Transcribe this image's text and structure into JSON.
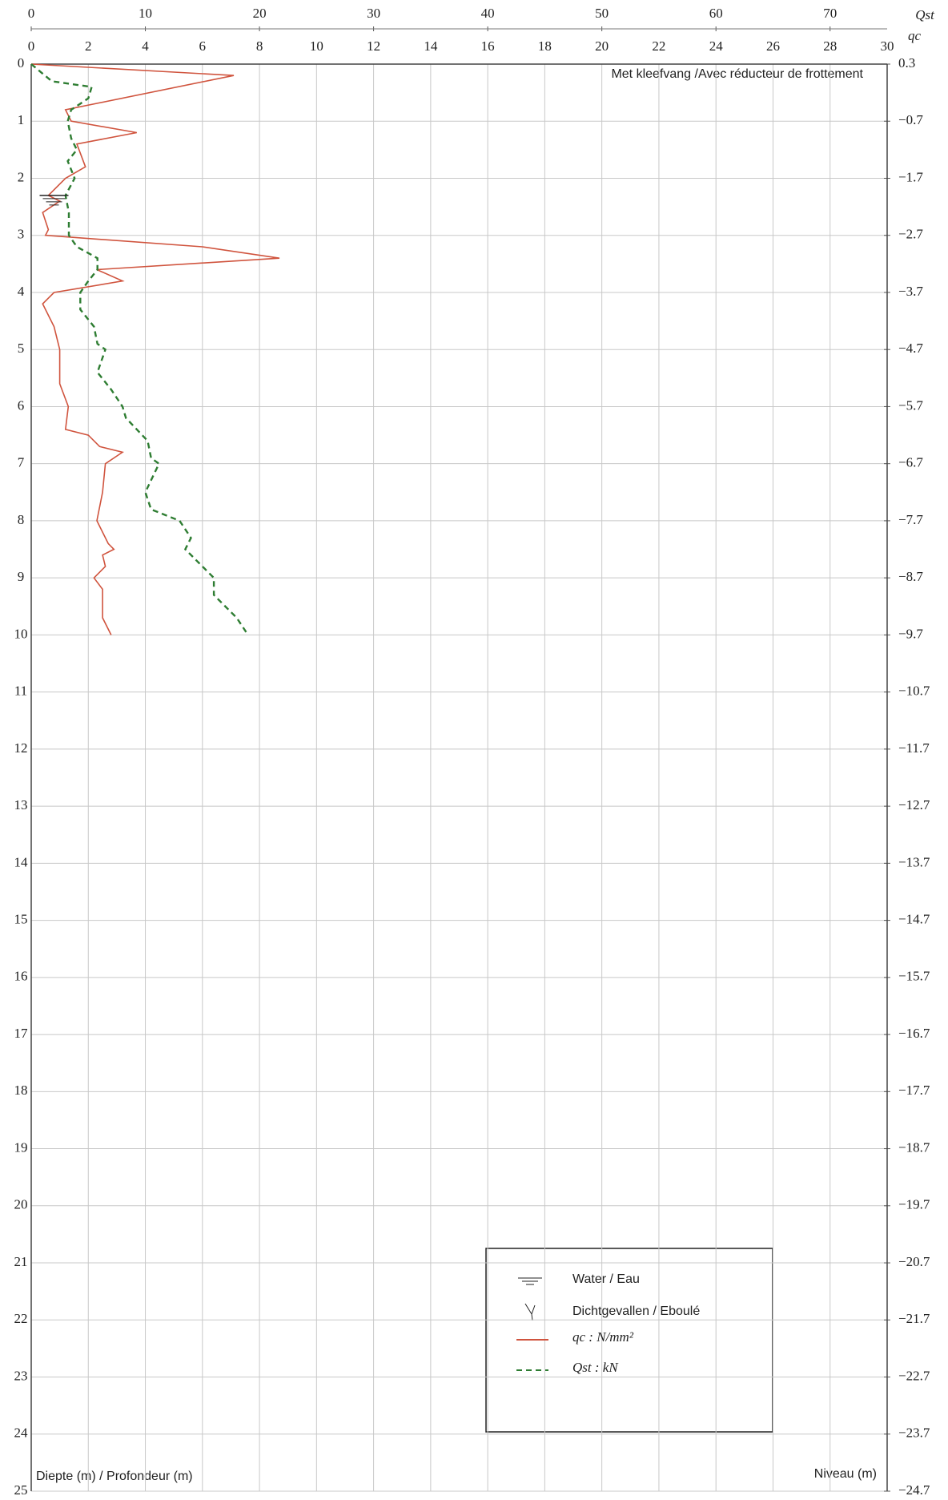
{
  "chart_data": {
    "type": "line",
    "title": "Met kleefvang /Avec réducteur de frottement",
    "y_label": "Diepte (m) / Profondeur (m)",
    "y2_label": "Niveau (m)",
    "x_label": "qc",
    "x2_label": "Qst",
    "xlim": [
      0,
      30
    ],
    "xticks": [
      0,
      2,
      4,
      6,
      8,
      10,
      12,
      14,
      16,
      18,
      20,
      22,
      24,
      26,
      28,
      30
    ],
    "x2lim": [
      0,
      75
    ],
    "x2ticks": [
      0,
      10,
      20,
      30,
      40,
      50,
      60,
      70
    ],
    "ylim": [
      0,
      25
    ],
    "yticks": [
      0,
      1,
      2,
      3,
      4,
      5,
      6,
      7,
      8,
      9,
      10,
      11,
      12,
      13,
      14,
      15,
      16,
      17,
      18,
      19,
      20,
      21,
      22,
      23,
      24,
      25
    ],
    "y2lim": [
      0.3,
      -24.7
    ],
    "y2ticks": [
      0.3,
      {
        "value": -0.7,
        "label": "−0.7"
      },
      {
        "value": -1.7,
        "label": "−1.7"
      },
      {
        "value": -2.7,
        "label": "−2.7"
      },
      {
        "value": -3.7,
        "label": "−3.7"
      },
      {
        "value": -4.7,
        "label": "−4.7"
      },
      {
        "value": -5.7,
        "label": "−5.7"
      },
      {
        "value": -6.7,
        "label": "−6.7"
      },
      {
        "value": -7.7,
        "label": "−7.7"
      },
      {
        "value": -8.7,
        "label": "−8.7"
      },
      {
        "value": -9.7,
        "label": "−9.7"
      },
      {
        "value": -10.7,
        "label": "−10.7"
      },
      {
        "value": -11.7,
        "label": "−11.7"
      },
      {
        "value": -12.7,
        "label": "−12.7"
      },
      {
        "value": -13.7,
        "label": "−13.7"
      },
      {
        "value": -14.7,
        "label": "−14.7"
      },
      {
        "value": -15.7,
        "label": "−15.7"
      },
      {
        "value": -16.7,
        "label": "−16.7"
      },
      {
        "value": -17.7,
        "label": "−17.7"
      },
      {
        "value": -18.7,
        "label": "−18.7"
      },
      {
        "value": -19.7,
        "label": "−19.7"
      },
      {
        "value": -20.7,
        "label": "−20.7"
      },
      {
        "value": -21.7,
        "label": "−21.7"
      },
      {
        "value": -22.7,
        "label": "−22.7"
      },
      {
        "value": -23.7,
        "label": "−23.7"
      },
      {
        "value": -24.7,
        "label": "−24.7"
      }
    ],
    "grid": true,
    "water_depth": 2.3,
    "legend_water": "Water / Eau",
    "legend_collapse": "Dichtgevallen / Eboulé",
    "series": [
      {
        "name": "qc : N/mm²",
        "color": "#d0543e",
        "dash": "none",
        "x": [
          0,
          7.1,
          1.2,
          1.4,
          3.7,
          1.6,
          1.9,
          1.2,
          0.6,
          1.0,
          0.4,
          0.6,
          0.5,
          6.0,
          8.7,
          2.3,
          3.2,
          0.8,
          0.4,
          0.8,
          1.0,
          1.0,
          1.3,
          1.2,
          2.0,
          2.4,
          3.2,
          2.6,
          2.5,
          2.3,
          2.7,
          2.9,
          2.5,
          2.6,
          2.2,
          2.5,
          2.5,
          2.8
        ],
        "values": [
          0,
          0.2,
          0.8,
          1.0,
          1.2,
          1.4,
          1.8,
          2.0,
          2.3,
          2.4,
          2.6,
          2.9,
          3.0,
          3.2,
          3.4,
          3.6,
          3.8,
          4.0,
          4.2,
          4.6,
          5.0,
          5.6,
          6.0,
          6.4,
          6.5,
          6.7,
          6.8,
          7.0,
          7.5,
          8.0,
          8.4,
          8.5,
          8.6,
          8.8,
          9.0,
          9.2,
          9.7,
          10.0
        ]
      },
      {
        "name": "Qst : kN",
        "color": "#2e7d32",
        "dash": "7 5",
        "axis": "x2",
        "x": [
          0,
          1.8,
          5.3,
          5.0,
          3.5,
          3.2,
          3.5,
          4.0,
          3.2,
          3.8,
          3.0,
          3.3,
          3.3,
          4.0,
          5.8,
          5.8,
          5.0,
          4.3,
          4.3,
          5.5,
          5.8,
          6.5,
          5.8,
          7.0,
          8.0,
          8.3,
          10.2,
          10.5,
          11.2,
          10.0,
          10.5,
          13.0,
          14.0,
          13.5,
          15.5,
          16.0,
          16.0,
          18.0,
          19.0
        ],
        "values": [
          0,
          0.3,
          0.4,
          0.6,
          0.8,
          1.0,
          1.3,
          1.5,
          1.7,
          2.0,
          2.3,
          2.6,
          3.0,
          3.2,
          3.4,
          3.6,
          3.8,
          4.0,
          4.3,
          4.6,
          4.9,
          5.0,
          5.4,
          5.7,
          6.0,
          6.2,
          6.6,
          6.9,
          7.0,
          7.5,
          7.8,
          8.0,
          8.3,
          8.5,
          8.9,
          9.0,
          9.3,
          9.7,
          10.0
        ]
      }
    ]
  }
}
